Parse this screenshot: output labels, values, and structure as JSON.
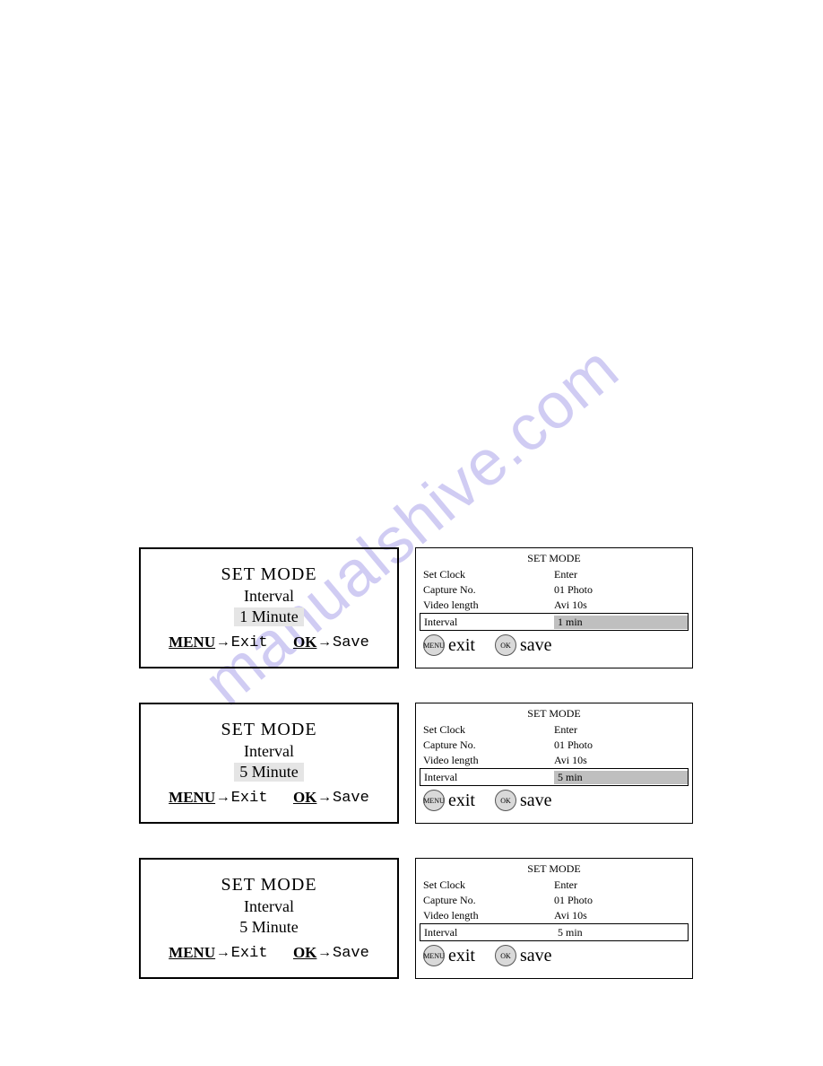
{
  "watermark": "manualshive.com",
  "rows": [
    {
      "lcd": {
        "title": "SET MODE",
        "sub": "Interval",
        "value": "1 Minute",
        "highlighted": true,
        "menu_label": "MENU",
        "exit_label": "Exit",
        "ok_label": "OK",
        "save_label": "Save"
      },
      "menu": {
        "title": "SET MODE",
        "r1k": "Set Clock",
        "r1v": "Enter",
        "r2k": "Capture No.",
        "r2v": "01 Photo",
        "r3k": "Video length",
        "r3v": "Avi 10s",
        "selk": "Interval",
        "selv": "1 min",
        "sel_highlight": true,
        "btn_menu": "MENU",
        "exit": "exit",
        "btn_ok": "OK",
        "save": "save"
      }
    },
    {
      "lcd": {
        "title": "SET MODE",
        "sub": "Interval",
        "value": "5 Minute",
        "highlighted": true,
        "menu_label": "MENU",
        "exit_label": "Exit",
        "ok_label": "OK",
        "save_label": "Save"
      },
      "menu": {
        "title": "SET MODE",
        "r1k": "Set Clock",
        "r1v": "Enter",
        "r2k": "Capture No.",
        "r2v": "01 Photo",
        "r3k": "Video length",
        "r3v": "Avi 10s",
        "selk": "Interval",
        "selv": "5 min",
        "sel_highlight": true,
        "btn_menu": "MENU",
        "exit": "exit",
        "btn_ok": "OK",
        "save": "save"
      }
    },
    {
      "lcd": {
        "title": "SET MODE",
        "sub": "Interval",
        "value": "5 Minute",
        "highlighted": false,
        "menu_label": "MENU",
        "exit_label": "Exit",
        "ok_label": "OK",
        "save_label": "Save"
      },
      "menu": {
        "title": "SET MODE",
        "r1k": "Set Clock",
        "r1v": "Enter",
        "r2k": "Capture No.",
        "r2v": "01 Photo",
        "r3k": "Video length",
        "r3v": "Avi 10s",
        "selk": "Interval",
        "selv": "5 min",
        "sel_highlight": false,
        "btn_menu": "MENU",
        "exit": "exit",
        "btn_ok": "OK",
        "save": "save"
      }
    }
  ],
  "colors": {
    "highlight_bg": "#e5e5e5",
    "menu_highlight_bg": "#bfbfbf",
    "circle_bg": "#d9d9d9",
    "watermark_color": "rgba(120,110,220,0.35)"
  }
}
